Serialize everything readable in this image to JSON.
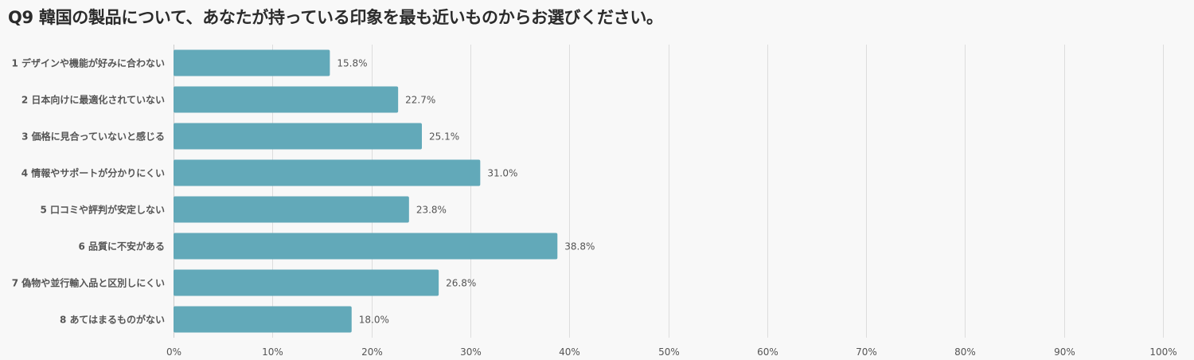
{
  "chart_data": {
    "type": "bar",
    "orientation": "horizontal",
    "title": "Q9 韓国の製品について、あなたが持っている印象を最も近いものからお選びください。",
    "categories": [
      "1 デザインや機能が好みに合わない",
      "2 日本向けに最適化されていない",
      "3 価格に見合っていないと感じる",
      "4 情報やサポートが分かりにくい",
      "5 口コミや評判が安定しない",
      "6 品質に不安がある",
      "7 偽物や並行輸入品と区別しにくい",
      "8 あてはまるものがない"
    ],
    "values": [
      15.8,
      22.7,
      25.1,
      31.0,
      23.8,
      38.8,
      26.8,
      18.0
    ],
    "value_labels": [
      "15.8%",
      "22.7%",
      "25.1%",
      "31.0%",
      "23.8%",
      "38.8%",
      "26.8%",
      "18.0%"
    ],
    "xlim": [
      0,
      100
    ],
    "x_ticks": [
      "0%",
      "10%",
      "20%",
      "30%",
      "40%",
      "50%",
      "60%",
      "70%",
      "80%",
      "90%",
      "100%"
    ],
    "grid": true,
    "legend": "none",
    "bar_color": "#62a9b9"
  }
}
